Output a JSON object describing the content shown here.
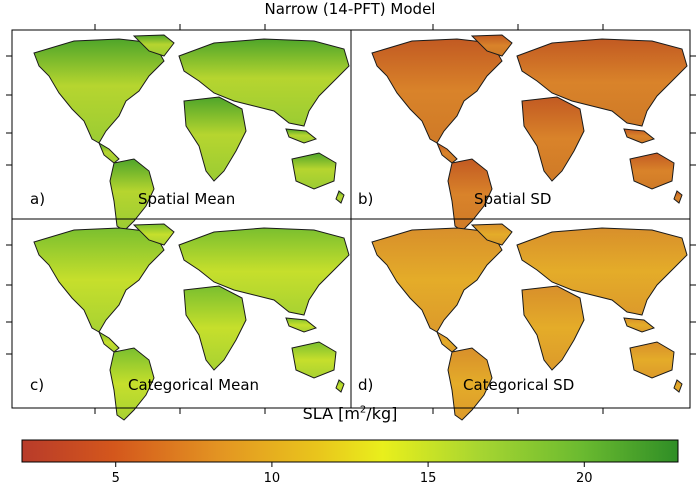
{
  "title": "Narrow (14-PFT) Model",
  "panels": [
    {
      "letter": "a)",
      "name": "Spatial Mean",
      "palette": "green-yellow"
    },
    {
      "letter": "b)",
      "name": "Spatial SD",
      "palette": "orange-brown"
    },
    {
      "letter": "c)",
      "name": "Categorical Mean",
      "palette": "yellow-green"
    },
    {
      "letter": "d)",
      "name": "Categorical SD",
      "palette": "orange"
    }
  ],
  "colorbar": {
    "label_prefix": "SLA [m",
    "label_sup": "2",
    "label_suffix": "/kg]",
    "ticks": [
      "5",
      "10",
      "15",
      "20"
    ],
    "tick_values": [
      5,
      10,
      15,
      20
    ],
    "min": 2,
    "max": 23,
    "colors": [
      "#b83b2a",
      "#d4571c",
      "#e39422",
      "#e9c51c",
      "#e9ef1c",
      "#a6d531",
      "#6cbb30",
      "#2f8e26"
    ]
  }
}
